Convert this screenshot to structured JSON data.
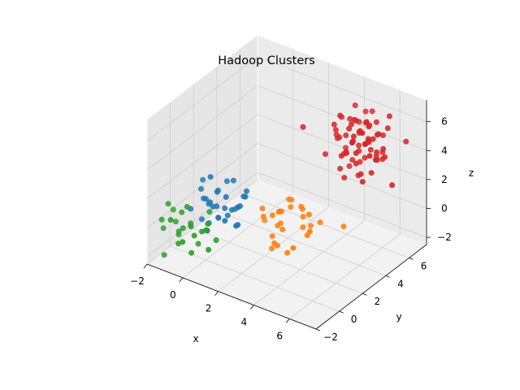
{
  "chart_data": {
    "type": "scatter",
    "title": "Hadoop Clusters",
    "xlabel": "x",
    "ylabel": "y",
    "zlabel": "z",
    "xlim": [
      -2,
      7.5
    ],
    "ylim": [
      -2,
      7.5
    ],
    "zlim": [
      -2.5,
      7.5
    ],
    "xticks": [
      -2,
      0,
      2,
      4,
      6
    ],
    "yticks": [
      -2,
      0,
      2,
      4,
      6
    ],
    "zticks": [
      -2,
      0,
      2,
      4,
      6
    ],
    "grid": true,
    "series": [
      {
        "color": "#1f77b4",
        "points": [
          [
            -0.5,
            0.5,
            2.5
          ],
          [
            0.2,
            -0.3,
            2.0
          ],
          [
            0.8,
            0.4,
            1.2
          ],
          [
            -0.2,
            0.1,
            1.6
          ],
          [
            0.5,
            -0.5,
            0.6
          ],
          [
            1.0,
            0.2,
            2.2
          ],
          [
            1.4,
            0.8,
            1.4
          ],
          [
            0.3,
            0.6,
            0.2
          ],
          [
            1.2,
            -0.2,
            0.9
          ],
          [
            -0.6,
            -0.4,
            1.0
          ],
          [
            0.9,
            1.0,
            2.8
          ],
          [
            0.1,
            0.9,
            1.8
          ],
          [
            1.6,
            0.3,
            0.5
          ],
          [
            0.6,
            0.0,
            1.5
          ],
          [
            -0.3,
            0.7,
            0.8
          ],
          [
            1.1,
            -0.6,
            1.3
          ],
          [
            0.4,
            1.2,
            2.4
          ],
          [
            1.3,
            0.6,
            0.1
          ],
          [
            0.7,
            -0.1,
            2.6
          ],
          [
            -0.1,
            -0.2,
            0.4
          ],
          [
            1.5,
            1.1,
            1.9
          ],
          [
            0.2,
            0.3,
            1.1
          ],
          [
            0.9,
            0.5,
            0.7
          ],
          [
            1.8,
            0.0,
            2.0
          ],
          [
            0.0,
            0.4,
            3.0
          ],
          [
            1.2,
            1.4,
            1.6
          ],
          [
            0.6,
            -0.8,
            0.3
          ],
          [
            1.7,
            0.9,
            2.5
          ],
          [
            0.3,
            -0.1,
            1.7
          ],
          [
            1.0,
            0.7,
            1.0
          ],
          [
            -0.4,
            0.2,
            2.1
          ],
          [
            0.8,
            1.3,
            0.6
          ]
        ]
      },
      {
        "color": "#ff7f0e",
        "points": [
          [
            2.5,
            2.5,
            0.5
          ],
          [
            3.0,
            2.0,
            -0.2
          ],
          [
            2.2,
            2.8,
            -0.8
          ],
          [
            3.5,
            3.0,
            0.3
          ],
          [
            2.8,
            1.6,
            -1.0
          ],
          [
            3.2,
            2.4,
            1.2
          ],
          [
            1.8,
            2.2,
            0.0
          ],
          [
            4.0,
            2.6,
            -0.5
          ],
          [
            2.6,
            3.4,
            0.8
          ],
          [
            3.4,
            1.8,
            -1.5
          ],
          [
            2.0,
            1.8,
            0.9
          ],
          [
            3.8,
            3.2,
            -0.3
          ],
          [
            2.4,
            2.0,
            -1.8
          ],
          [
            3.0,
            3.6,
            0.4
          ],
          [
            4.4,
            2.2,
            0.2
          ],
          [
            1.6,
            2.6,
            -0.6
          ],
          [
            2.9,
            2.7,
            1.4
          ],
          [
            3.6,
            2.0,
            -1.2
          ],
          [
            2.3,
            3.0,
            0.1
          ],
          [
            3.1,
            1.4,
            -0.9
          ],
          [
            2.7,
            2.3,
            -0.1
          ],
          [
            3.9,
            2.9,
            0.7
          ],
          [
            2.1,
            2.5,
            -1.4
          ],
          [
            3.3,
            3.3,
            -0.7
          ],
          [
            2.5,
            1.9,
            0.6
          ],
          [
            4.2,
            3.4,
            0.0
          ],
          [
            5.0,
            4.2,
            -0.4
          ],
          [
            2.0,
            3.2,
            -0.2
          ],
          [
            3.6,
            2.8,
            1.0
          ]
        ]
      },
      {
        "color": "#2ca02c",
        "points": [
          [
            -1.5,
            -1.5,
            0.5
          ],
          [
            -1.0,
            -0.8,
            -0.5
          ],
          [
            -0.5,
            -1.2,
            0.2
          ],
          [
            -1.2,
            -0.5,
            -1.0
          ],
          [
            0.0,
            -1.0,
            -0.2
          ],
          [
            -0.8,
            -1.8,
            1.0
          ],
          [
            0.5,
            -0.6,
            0.6
          ],
          [
            -1.8,
            -0.9,
            -0.6
          ],
          [
            -0.3,
            -0.2,
            -1.4
          ],
          [
            0.2,
            -1.6,
            0.9
          ],
          [
            -1.4,
            -1.1,
            1.4
          ],
          [
            -0.6,
            -0.4,
            0.0
          ],
          [
            0.8,
            -1.0,
            -0.8
          ],
          [
            -1.1,
            -1.9,
            -1.5
          ],
          [
            0.4,
            -0.3,
            1.2
          ],
          [
            -1.7,
            -0.2,
            0.3
          ],
          [
            0.1,
            -1.4,
            -1.1
          ],
          [
            -0.9,
            -0.7,
            0.8
          ],
          [
            0.6,
            -0.9,
            0.4
          ],
          [
            -0.2,
            -1.7,
            -0.3
          ],
          [
            -1.3,
            -0.6,
            -0.1
          ],
          [
            -0.4,
            -1.0,
            1.6
          ],
          [
            0.9,
            -0.5,
            -0.4
          ],
          [
            -0.7,
            -1.3,
            -0.9
          ],
          [
            0.3,
            -0.8,
            0.1
          ]
        ]
      },
      {
        "color": "#d62728",
        "points": [
          [
            5.0,
            5.0,
            5.0
          ],
          [
            5.5,
            4.5,
            4.0
          ],
          [
            4.5,
            5.5,
            6.0
          ],
          [
            6.0,
            5.2,
            5.5
          ],
          [
            5.2,
            6.0,
            4.5
          ],
          [
            4.8,
            4.2,
            3.5
          ],
          [
            5.8,
            5.8,
            6.2
          ],
          [
            4.2,
            4.8,
            5.2
          ],
          [
            6.2,
            4.6,
            4.8
          ],
          [
            5.4,
            5.4,
            3.8
          ],
          [
            4.6,
            5.8,
            6.8
          ],
          [
            5.6,
            4.0,
            5.8
          ],
          [
            6.4,
            5.6,
            4.2
          ],
          [
            4.0,
            5.2,
            4.6
          ],
          [
            5.1,
            4.7,
            6.4
          ],
          [
            5.9,
            6.2,
            5.1
          ],
          [
            4.9,
            4.4,
            2.8
          ],
          [
            5.3,
            5.9,
            5.6
          ],
          [
            6.1,
            4.9,
            3.4
          ],
          [
            4.4,
            6.2,
            5.4
          ],
          [
            5.7,
            5.1,
            6.6
          ],
          [
            4.7,
            4.9,
            4.1
          ],
          [
            6.3,
            6.0,
            5.9
          ],
          [
            5.0,
            5.6,
            3.2
          ],
          [
            5.5,
            4.3,
            6.0
          ],
          [
            4.3,
            4.6,
            5.7
          ],
          [
            6.0,
            5.5,
            4.4
          ],
          [
            5.2,
            4.1,
            4.9
          ],
          [
            4.8,
            6.4,
            6.1
          ],
          [
            5.8,
            4.8,
            5.3
          ],
          [
            5.4,
            6.6,
            4.7
          ],
          [
            4.1,
            4.0,
            4.3
          ],
          [
            6.5,
            5.3,
            5.0
          ],
          [
            5.1,
            5.3,
            2.5
          ],
          [
            4.6,
            4.5,
            6.9
          ],
          [
            5.9,
            5.7,
            3.7
          ],
          [
            5.3,
            4.5,
            5.4
          ],
          [
            4.5,
            5.0,
            3.9
          ],
          [
            6.2,
            6.3,
            6.5
          ],
          [
            5.0,
            4.0,
            4.6
          ],
          [
            4.9,
            5.7,
            5.1
          ],
          [
            5.6,
            6.1,
            3.6
          ],
          [
            4.4,
            4.3,
            6.3
          ],
          [
            6.1,
            4.4,
            5.7
          ],
          [
            5.2,
            5.2,
            4.3
          ],
          [
            4.7,
            6.0,
            4.9
          ],
          [
            5.7,
            4.6,
            3.3
          ],
          [
            5.4,
            5.0,
            5.9
          ],
          [
            4.2,
            5.6,
            3.8
          ],
          [
            6.3,
            5.1,
            6.0
          ],
          [
            5.0,
            6.1,
            5.6
          ],
          [
            5.5,
            5.6,
            4.8
          ],
          [
            4.8,
            4.7,
            5.5
          ],
          [
            6.0,
            6.0,
            4.1
          ],
          [
            5.3,
            4.2,
            6.5
          ],
          [
            4.6,
            5.3,
            2.9
          ],
          [
            5.8,
            5.3,
            4.6
          ],
          [
            5.1,
            6.5,
            6.2
          ],
          [
            4.3,
            4.9,
            5.0
          ],
          [
            6.4,
            4.8,
            4.5
          ],
          [
            5.6,
            5.4,
            5.2
          ],
          [
            4.9,
            5.1,
            3.6
          ],
          [
            5.2,
            4.8,
            6.7
          ],
          [
            6.2,
            5.7,
            3.9
          ],
          [
            4.5,
            6.3,
            5.3
          ],
          [
            5.7,
            4.2,
            5.0
          ],
          [
            5.0,
            5.5,
            4.4
          ],
          [
            4.1,
            5.4,
            6.0
          ],
          [
            6.0,
            4.3,
            3.1
          ],
          [
            5.4,
            5.8,
            5.8
          ],
          [
            7.0,
            6.5,
            5.0
          ],
          [
            3.5,
            3.0,
            6.5
          ],
          [
            6.5,
            3.5,
            7.2
          ],
          [
            7.2,
            5.0,
            3.0
          ]
        ]
      }
    ]
  }
}
